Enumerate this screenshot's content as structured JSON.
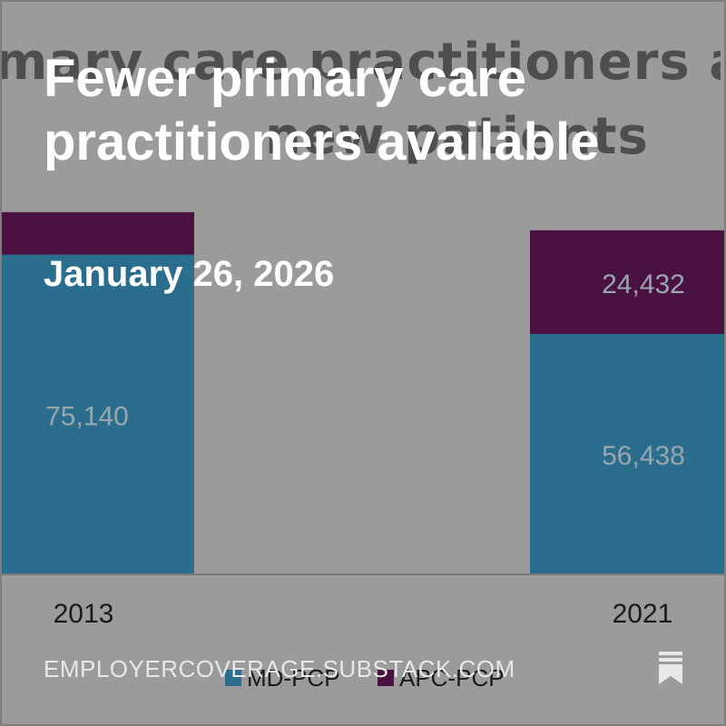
{
  "background_chart": {
    "title_line_1": "mary care practitioners accep",
    "title_line_2": "new patients"
  },
  "overlay": {
    "title": "Fewer primary care practitioners available",
    "date": "January 26, 2026",
    "site": "EMPLOYERCOVERAGE.SUBSTACK.COM"
  },
  "colors": {
    "md_pcp": "#2a6d8c",
    "apc_pcp": "#4a1240",
    "background": "#9b9b9b"
  },
  "icons": {
    "bookmark": "bookmark-icon"
  },
  "chart_data": {
    "type": "bar",
    "stacked": true,
    "categories": [
      "2013",
      "2021"
    ],
    "series": [
      {
        "name": "MD-PCP",
        "values": [
          75140,
          56438
        ],
        "labels": [
          "75,140",
          "56,438"
        ],
        "color": "#2a6d8c"
      },
      {
        "name": "APC-PCP",
        "values": [
          10000,
          24432
        ],
        "labels": [
          "",
          "24,432"
        ],
        "color": "#4a1240"
      }
    ],
    "legend": {
      "position": "bottom",
      "entries": [
        "MD-PCP",
        "APC-PCP"
      ]
    },
    "grid": false
  }
}
